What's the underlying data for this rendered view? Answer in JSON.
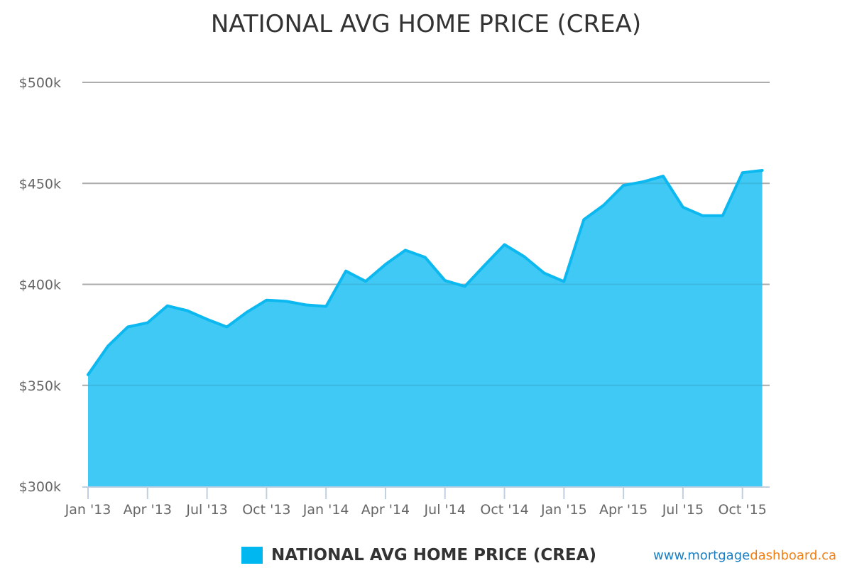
{
  "title": "NATIONAL AVG HOME PRICE (CREA)",
  "legend": {
    "label": "NATIONAL AVG HOME PRICE (CREA)",
    "color": "#00b7f0"
  },
  "credit": {
    "part1": "www.mortgage",
    "part2": "dashboard.ca",
    "color1": "#1a7fc1",
    "color2": "#f07f14"
  },
  "colors": {
    "line": "#0bb8ef",
    "fill": "#40c9f4",
    "grid": "#bbbbbb",
    "axis": "#c0d0e0"
  },
  "chart_data": {
    "type": "area",
    "title": "NATIONAL AVG HOME PRICE (CREA)",
    "xlabel": "",
    "ylabel": "",
    "ylim": [
      300,
      500
    ],
    "y_unit": "$k",
    "y_ticks": [
      "$300k",
      "$350k",
      "$400k",
      "$450k",
      "$500k"
    ],
    "y_tick_values": [
      300,
      350,
      400,
      450,
      500
    ],
    "x_ticks": [
      "Jan '13",
      "Apr '13",
      "Jul '13",
      "Oct '13",
      "Jan '14",
      "Apr '14",
      "Jul '14",
      "Oct '14",
      "Jan '15",
      "Apr '15",
      "Jul '15",
      "Oct '15"
    ],
    "grid": true,
    "legend_position": "bottom",
    "x": [
      "Jan '13",
      "Feb '13",
      "Mar '13",
      "Apr '13",
      "May '13",
      "Jun '13",
      "Jul '13",
      "Aug '13",
      "Sep '13",
      "Oct '13",
      "Nov '13",
      "Dec '13",
      "Jan '14",
      "Feb '14",
      "Mar '14",
      "Apr '14",
      "May '14",
      "Jun '14",
      "Jul '14",
      "Aug '14",
      "Sep '14",
      "Oct '14",
      "Nov '14",
      "Dec '14",
      "Jan '15",
      "Feb '15",
      "Mar '15",
      "Apr '15",
      "May '15",
      "Jun '15",
      "Jul '15",
      "Aug '15",
      "Sep '15",
      "Oct '15",
      "Nov '15"
    ],
    "series": [
      {
        "name": "NATIONAL AVG HOME PRICE (CREA)",
        "values": [
          355.3,
          369.4,
          378.9,
          381.0,
          389.4,
          387.0,
          382.7,
          378.9,
          386.2,
          392.2,
          391.6,
          389.8,
          389.1,
          406.6,
          401.5,
          409.9,
          416.9,
          413.4,
          401.9,
          399.0,
          409.5,
          419.7,
          413.7,
          405.6,
          401.4,
          432.1,
          439.2,
          449.0,
          450.8,
          453.6,
          438.2,
          434.0,
          434.0,
          455.3,
          456.4
        ]
      }
    ]
  }
}
